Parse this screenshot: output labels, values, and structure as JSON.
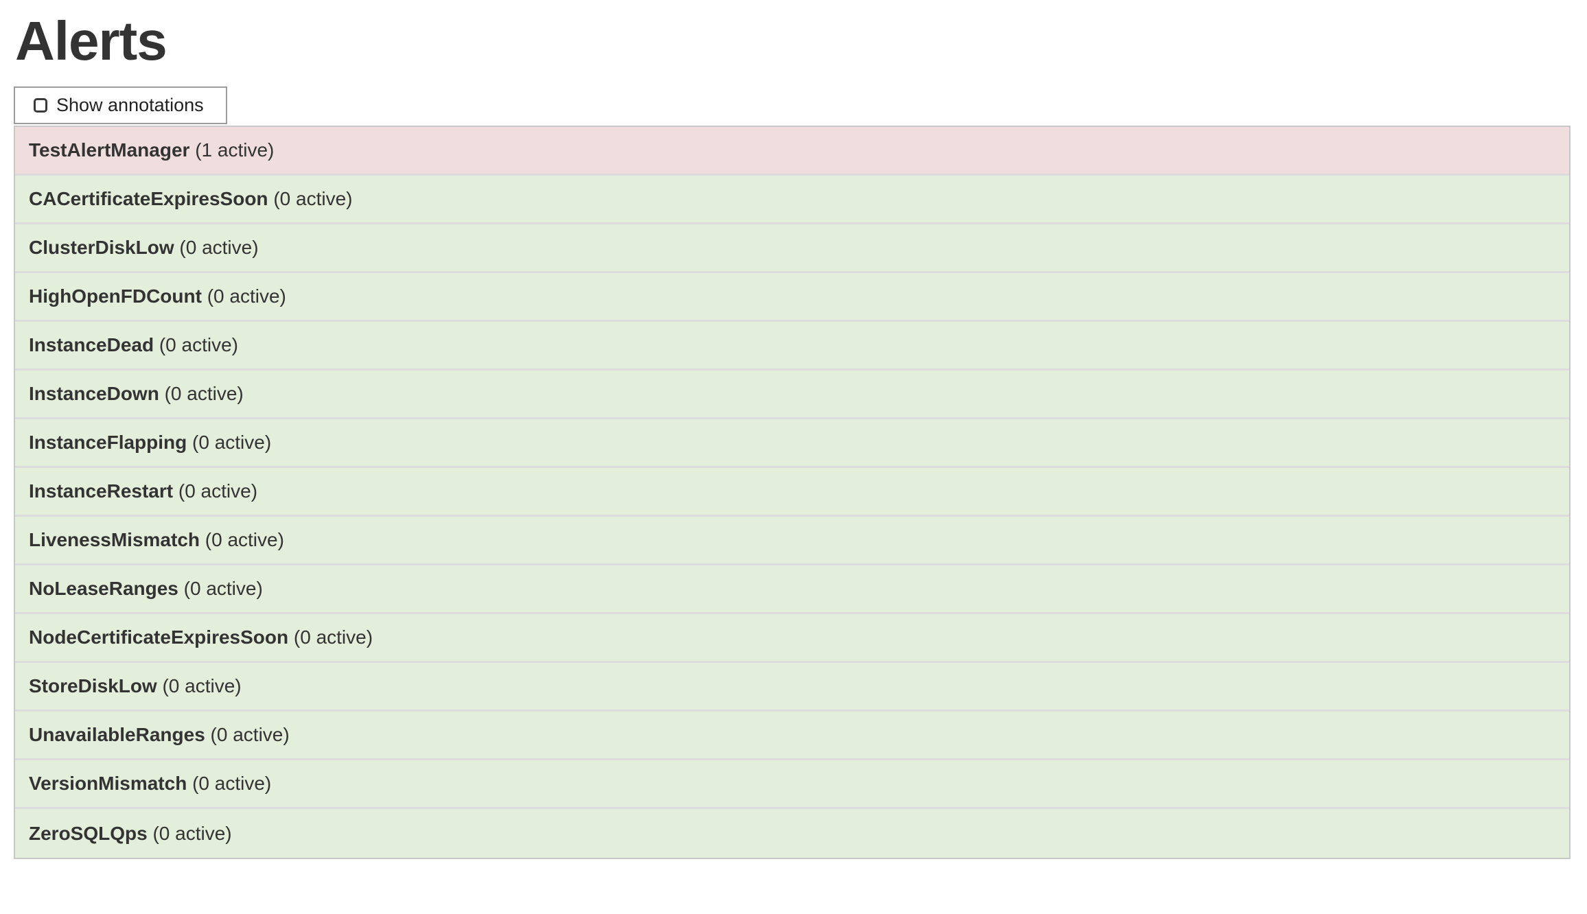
{
  "page": {
    "title": "Alerts"
  },
  "toolbar": {
    "show_annotations_label": "Show annotations",
    "checkbox_checked": false
  },
  "colors": {
    "active_row_bg": "#f0dede",
    "inactive_row_bg": "#e3eedb",
    "row_separator": "#dcdcde",
    "table_border": "#c8c8c8",
    "button_border": "#9c9c9c",
    "text": "#333333"
  },
  "alerts": [
    {
      "name": "TestAlertManager",
      "active_count": 1,
      "count_label": "(1 active)",
      "state": "active"
    },
    {
      "name": "CACertificateExpiresSoon",
      "active_count": 0,
      "count_label": "(0 active)",
      "state": "inactive"
    },
    {
      "name": "ClusterDiskLow",
      "active_count": 0,
      "count_label": "(0 active)",
      "state": "inactive"
    },
    {
      "name": "HighOpenFDCount",
      "active_count": 0,
      "count_label": "(0 active)",
      "state": "inactive"
    },
    {
      "name": "InstanceDead",
      "active_count": 0,
      "count_label": "(0 active)",
      "state": "inactive"
    },
    {
      "name": "InstanceDown",
      "active_count": 0,
      "count_label": "(0 active)",
      "state": "inactive"
    },
    {
      "name": "InstanceFlapping",
      "active_count": 0,
      "count_label": "(0 active)",
      "state": "inactive"
    },
    {
      "name": "InstanceRestart",
      "active_count": 0,
      "count_label": "(0 active)",
      "state": "inactive"
    },
    {
      "name": "LivenessMismatch",
      "active_count": 0,
      "count_label": "(0 active)",
      "state": "inactive"
    },
    {
      "name": "NoLeaseRanges",
      "active_count": 0,
      "count_label": "(0 active)",
      "state": "inactive"
    },
    {
      "name": "NodeCertificateExpiresSoon",
      "active_count": 0,
      "count_label": "(0 active)",
      "state": "inactive"
    },
    {
      "name": "StoreDiskLow",
      "active_count": 0,
      "count_label": "(0 active)",
      "state": "inactive"
    },
    {
      "name": "UnavailableRanges",
      "active_count": 0,
      "count_label": "(0 active)",
      "state": "inactive"
    },
    {
      "name": "VersionMismatch",
      "active_count": 0,
      "count_label": "(0 active)",
      "state": "inactive"
    },
    {
      "name": "ZeroSQLQps",
      "active_count": 0,
      "count_label": "(0 active)",
      "state": "inactive"
    }
  ]
}
